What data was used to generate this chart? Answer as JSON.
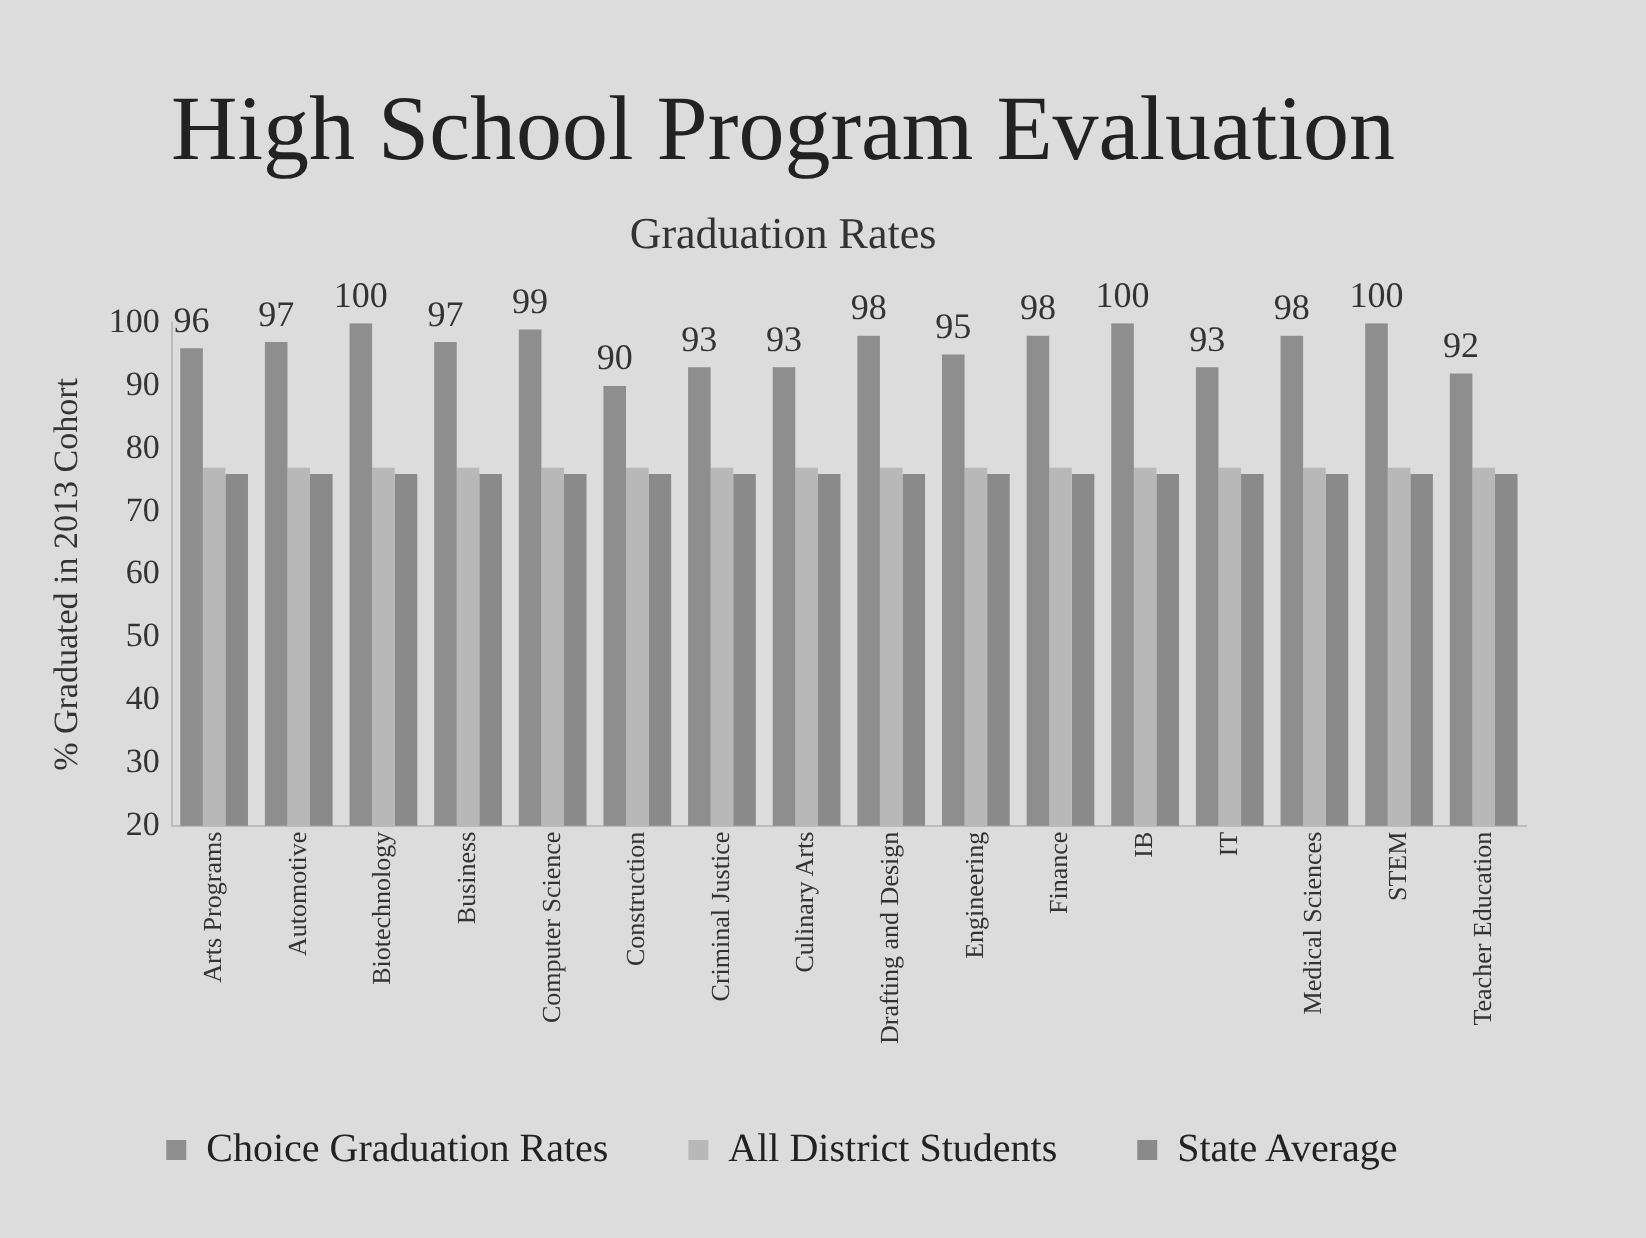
{
  "chart_data": {
    "type": "bar",
    "title": "High School Program Evaluation",
    "subtitle": "Graduation Rates",
    "ylabel": "% Graduated in 2013 Cohort",
    "categories": [
      "Arts Programs",
      "Automotive",
      "Biotechnology",
      "Business",
      "Computer Science",
      "Construction",
      "Criminal Justice",
      "Culinary Arts",
      "Drafting and Design",
      "Engineering",
      "Finance",
      "IB",
      "IT",
      "Medical Sciences",
      "STEM",
      "Teacher Education"
    ],
    "series": [
      {
        "name": "Choice Graduation Rates",
        "color": "#8e8e8e",
        "values": [
          96,
          97,
          100,
          97,
          99,
          90,
          93,
          93,
          98,
          95,
          98,
          100,
          93,
          98,
          100,
          92
        ],
        "value_labels": [
          "96",
          "97",
          "100",
          "97",
          "99",
          "90",
          "93",
          "93",
          "98",
          "95",
          "98",
          "100",
          "93",
          "98",
          "100",
          "92"
        ]
      },
      {
        "name": "All District Students",
        "color": "#b8b8b8",
        "values": [
          77,
          77,
          77,
          77,
          77,
          77,
          77,
          77,
          77,
          77,
          77,
          77,
          77,
          77,
          77,
          77
        ]
      },
      {
        "name": "State Average",
        "color": "#8a8a8a",
        "values": [
          76,
          76,
          76,
          76,
          76,
          76,
          76,
          76,
          76,
          76,
          76,
          76,
          76,
          76,
          76,
          76
        ]
      }
    ],
    "ylim": [
      20,
      100
    ],
    "yticks": [
      20,
      30,
      40,
      50,
      60,
      70,
      80,
      90,
      100
    ],
    "grid": false,
    "legend": "bottom"
  }
}
